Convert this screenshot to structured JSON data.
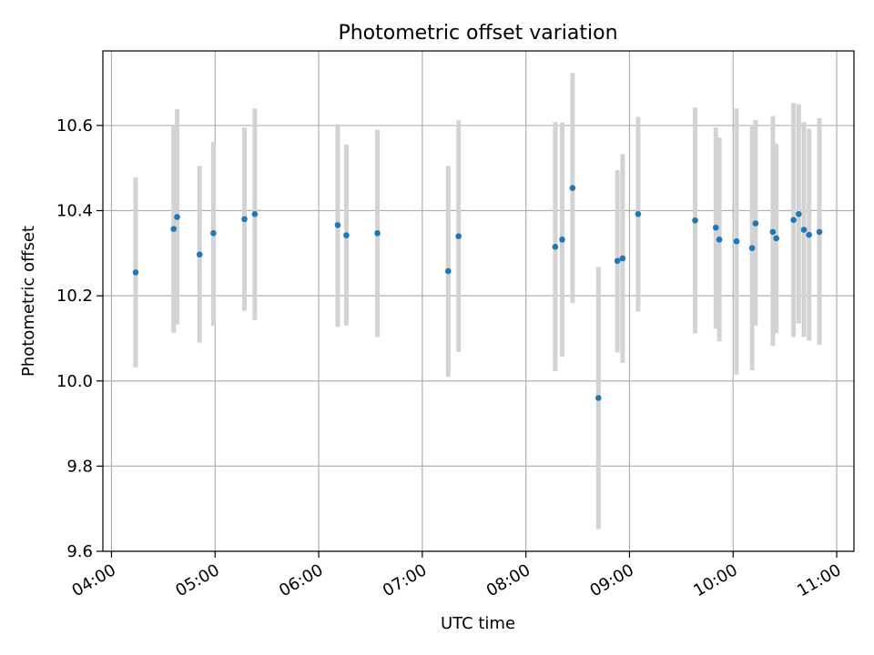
{
  "chart_data": {
    "type": "scatter",
    "title": "Photometric offset variation",
    "xlabel": "UTC time",
    "ylabel": "Photometric offset",
    "x_ticks": [
      "04:00",
      "05:00",
      "06:00",
      "07:00",
      "08:00",
      "09:00",
      "10:00",
      "11:00"
    ],
    "y_ticks": [
      "9.6",
      "9.8",
      "10.0",
      "10.2",
      "10.4",
      "10.6"
    ],
    "xlim": [
      "03:55",
      "11:10"
    ],
    "ylim": [
      9.6,
      10.775
    ],
    "grid": true,
    "point_color": "#1f77b4",
    "errorbar_color": "#d3d3d3",
    "points": [
      {
        "x": "04:14",
        "y": 10.255,
        "lo": 10.032,
        "hi": 10.478
      },
      {
        "x": "04:36",
        "y": 10.357,
        "lo": 10.113,
        "hi": 10.598
      },
      {
        "x": "04:38",
        "y": 10.385,
        "lo": 10.133,
        "hi": 10.638
      },
      {
        "x": "04:51",
        "y": 10.297,
        "lo": 10.09,
        "hi": 10.505
      },
      {
        "x": "04:59",
        "y": 10.347,
        "lo": 10.13,
        "hi": 10.562
      },
      {
        "x": "05:17",
        "y": 10.38,
        "lo": 10.165,
        "hi": 10.595
      },
      {
        "x": "05:23",
        "y": 10.392,
        "lo": 10.143,
        "hi": 10.64
      },
      {
        "x": "06:11",
        "y": 10.366,
        "lo": 10.127,
        "hi": 10.603
      },
      {
        "x": "06:16",
        "y": 10.342,
        "lo": 10.13,
        "hi": 10.555
      },
      {
        "x": "06:34",
        "y": 10.347,
        "lo": 10.103,
        "hi": 10.59
      },
      {
        "x": "07:15",
        "y": 10.258,
        "lo": 10.01,
        "hi": 10.505
      },
      {
        "x": "07:21",
        "y": 10.34,
        "lo": 10.068,
        "hi": 10.612
      },
      {
        "x": "08:17",
        "y": 10.315,
        "lo": 10.023,
        "hi": 10.608
      },
      {
        "x": "08:21",
        "y": 10.332,
        "lo": 10.057,
        "hi": 10.607
      },
      {
        "x": "08:27",
        "y": 10.453,
        "lo": 10.183,
        "hi": 10.723
      },
      {
        "x": "08:42",
        "y": 9.96,
        "lo": 9.652,
        "hi": 10.268
      },
      {
        "x": "08:53",
        "y": 10.282,
        "lo": 10.067,
        "hi": 10.495
      },
      {
        "x": "08:56",
        "y": 10.288,
        "lo": 10.042,
        "hi": 10.533
      },
      {
        "x": "09:05",
        "y": 10.392,
        "lo": 10.163,
        "hi": 10.62
      },
      {
        "x": "09:38",
        "y": 10.377,
        "lo": 10.112,
        "hi": 10.642
      },
      {
        "x": "09:50",
        "y": 10.36,
        "lo": 10.123,
        "hi": 10.595
      },
      {
        "x": "09:52",
        "y": 10.332,
        "lo": 10.093,
        "hi": 10.572
      },
      {
        "x": "10:02",
        "y": 10.328,
        "lo": 10.015,
        "hi": 10.64
      },
      {
        "x": "10:11",
        "y": 10.312,
        "lo": 10.025,
        "hi": 10.6
      },
      {
        "x": "10:13",
        "y": 10.37,
        "lo": 10.13,
        "hi": 10.613
      },
      {
        "x": "10:23",
        "y": 10.35,
        "lo": 10.082,
        "hi": 10.622
      },
      {
        "x": "10:25",
        "y": 10.335,
        "lo": 10.112,
        "hi": 10.557
      },
      {
        "x": "10:35",
        "y": 10.378,
        "lo": 10.103,
        "hi": 10.653
      },
      {
        "x": "10:38",
        "y": 10.392,
        "lo": 10.135,
        "hi": 10.65
      },
      {
        "x": "10:41",
        "y": 10.355,
        "lo": 10.103,
        "hi": 10.608
      },
      {
        "x": "10:44",
        "y": 10.343,
        "lo": 10.095,
        "hi": 10.592
      },
      {
        "x": "10:50",
        "y": 10.35,
        "lo": 10.085,
        "hi": 10.617
      }
    ]
  }
}
